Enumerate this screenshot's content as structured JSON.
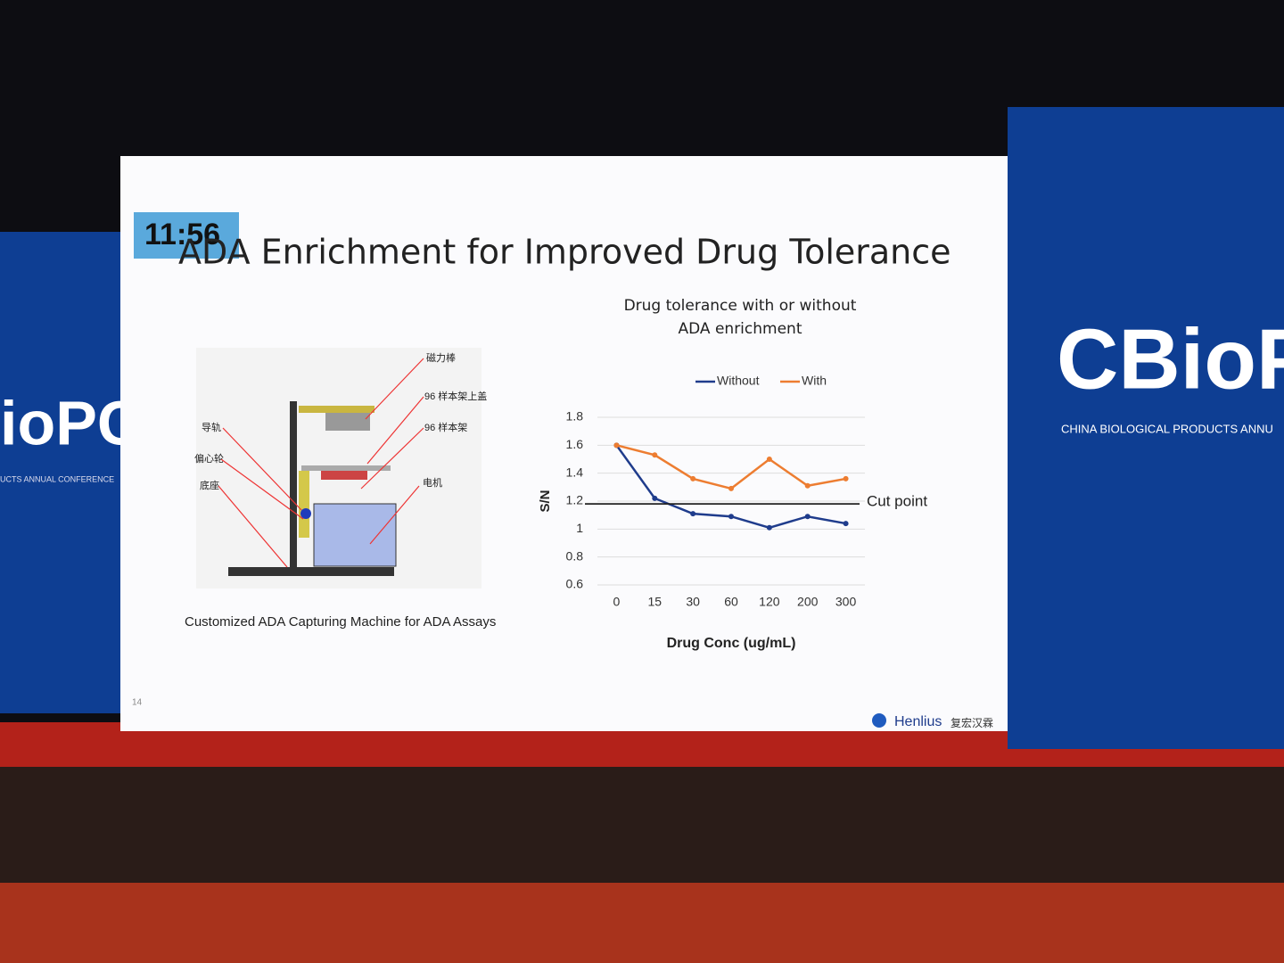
{
  "timer": "11:56",
  "slide_title": "ADA Enrichment for Improved Drug Tolerance",
  "diagram": {
    "caption": "Customized ADA Capturing Machine for ADA Assays",
    "labels": [
      "磁力棒",
      "96 样本架上盖",
      "96 样本架",
      "导轨",
      "偏心轮",
      "底座",
      "电机"
    ]
  },
  "page_number": "14",
  "logo": {
    "name": "Henlius",
    "chinese_name": "复宏汉霖"
  },
  "banner": {
    "left": "ioPC",
    "left_subtitle": "UCTS ANNUAL CONFERENCE",
    "right": "CBioP",
    "right_subtitle": "CHINA BIOLOGICAL PRODUCTS ANNU"
  },
  "chart_data": {
    "type": "line",
    "title": "Drug tolerance with or without ADA enrichment",
    "x_label": "Drug Conc (ug/mL)",
    "y_label": "S/N",
    "categories": [
      "0",
      "15",
      "30",
      "60",
      "120",
      "200",
      "300"
    ],
    "series": [
      {
        "name": "Without",
        "color": "#1f3c8c",
        "values": [
          1.6,
          1.22,
          1.11,
          1.09,
          1.01,
          1.09,
          1.04
        ]
      },
      {
        "name": "With",
        "color": "#ed7d31",
        "values": [
          1.6,
          1.53,
          1.36,
          1.29,
          1.5,
          1.31,
          1.36
        ]
      }
    ],
    "cut_point": {
      "label": "Cut point",
      "value": 1.18
    },
    "ylim": [
      0.6,
      1.8
    ],
    "yticks": [
      0.6,
      0.8,
      1,
      1.2,
      1.4,
      1.6,
      1.8
    ],
    "grid": true,
    "legend": "top"
  }
}
